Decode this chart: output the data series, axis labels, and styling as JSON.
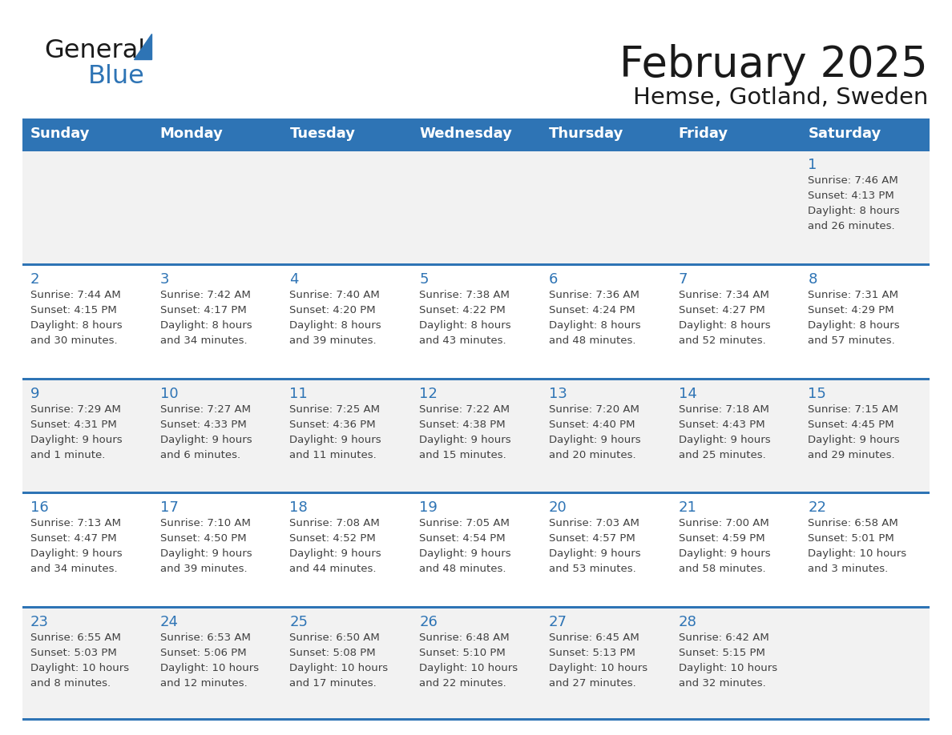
{
  "title": "February 2025",
  "subtitle": "Hemse, Gotland, Sweden",
  "days_of_week": [
    "Sunday",
    "Monday",
    "Tuesday",
    "Wednesday",
    "Thursday",
    "Friday",
    "Saturday"
  ],
  "header_bg": "#2E74B5",
  "header_text": "#FFFFFF",
  "row_bg_odd": "#F2F2F2",
  "row_bg_even": "#FFFFFF",
  "separator_color": "#2E74B5",
  "text_color": "#404040",
  "day_number_color": "#2E74B5",
  "logo_general_color": "#1A1A1A",
  "logo_blue_color": "#2E74B5",
  "logo_triangle_color": "#2E74B5",
  "title_color": "#1A1A1A",
  "calendar_data": [
    [
      {
        "day": null,
        "info": null
      },
      {
        "day": null,
        "info": null
      },
      {
        "day": null,
        "info": null
      },
      {
        "day": null,
        "info": null
      },
      {
        "day": null,
        "info": null
      },
      {
        "day": null,
        "info": null
      },
      {
        "day": 1,
        "info": "Sunrise: 7:46 AM\nSunset: 4:13 PM\nDaylight: 8 hours\nand 26 minutes."
      }
    ],
    [
      {
        "day": 2,
        "info": "Sunrise: 7:44 AM\nSunset: 4:15 PM\nDaylight: 8 hours\nand 30 minutes."
      },
      {
        "day": 3,
        "info": "Sunrise: 7:42 AM\nSunset: 4:17 PM\nDaylight: 8 hours\nand 34 minutes."
      },
      {
        "day": 4,
        "info": "Sunrise: 7:40 AM\nSunset: 4:20 PM\nDaylight: 8 hours\nand 39 minutes."
      },
      {
        "day": 5,
        "info": "Sunrise: 7:38 AM\nSunset: 4:22 PM\nDaylight: 8 hours\nand 43 minutes."
      },
      {
        "day": 6,
        "info": "Sunrise: 7:36 AM\nSunset: 4:24 PM\nDaylight: 8 hours\nand 48 minutes."
      },
      {
        "day": 7,
        "info": "Sunrise: 7:34 AM\nSunset: 4:27 PM\nDaylight: 8 hours\nand 52 minutes."
      },
      {
        "day": 8,
        "info": "Sunrise: 7:31 AM\nSunset: 4:29 PM\nDaylight: 8 hours\nand 57 minutes."
      }
    ],
    [
      {
        "day": 9,
        "info": "Sunrise: 7:29 AM\nSunset: 4:31 PM\nDaylight: 9 hours\nand 1 minute."
      },
      {
        "day": 10,
        "info": "Sunrise: 7:27 AM\nSunset: 4:33 PM\nDaylight: 9 hours\nand 6 minutes."
      },
      {
        "day": 11,
        "info": "Sunrise: 7:25 AM\nSunset: 4:36 PM\nDaylight: 9 hours\nand 11 minutes."
      },
      {
        "day": 12,
        "info": "Sunrise: 7:22 AM\nSunset: 4:38 PM\nDaylight: 9 hours\nand 15 minutes."
      },
      {
        "day": 13,
        "info": "Sunrise: 7:20 AM\nSunset: 4:40 PM\nDaylight: 9 hours\nand 20 minutes."
      },
      {
        "day": 14,
        "info": "Sunrise: 7:18 AM\nSunset: 4:43 PM\nDaylight: 9 hours\nand 25 minutes."
      },
      {
        "day": 15,
        "info": "Sunrise: 7:15 AM\nSunset: 4:45 PM\nDaylight: 9 hours\nand 29 minutes."
      }
    ],
    [
      {
        "day": 16,
        "info": "Sunrise: 7:13 AM\nSunset: 4:47 PM\nDaylight: 9 hours\nand 34 minutes."
      },
      {
        "day": 17,
        "info": "Sunrise: 7:10 AM\nSunset: 4:50 PM\nDaylight: 9 hours\nand 39 minutes."
      },
      {
        "day": 18,
        "info": "Sunrise: 7:08 AM\nSunset: 4:52 PM\nDaylight: 9 hours\nand 44 minutes."
      },
      {
        "day": 19,
        "info": "Sunrise: 7:05 AM\nSunset: 4:54 PM\nDaylight: 9 hours\nand 48 minutes."
      },
      {
        "day": 20,
        "info": "Sunrise: 7:03 AM\nSunset: 4:57 PM\nDaylight: 9 hours\nand 53 minutes."
      },
      {
        "day": 21,
        "info": "Sunrise: 7:00 AM\nSunset: 4:59 PM\nDaylight: 9 hours\nand 58 minutes."
      },
      {
        "day": 22,
        "info": "Sunrise: 6:58 AM\nSunset: 5:01 PM\nDaylight: 10 hours\nand 3 minutes."
      }
    ],
    [
      {
        "day": 23,
        "info": "Sunrise: 6:55 AM\nSunset: 5:03 PM\nDaylight: 10 hours\nand 8 minutes."
      },
      {
        "day": 24,
        "info": "Sunrise: 6:53 AM\nSunset: 5:06 PM\nDaylight: 10 hours\nand 12 minutes."
      },
      {
        "day": 25,
        "info": "Sunrise: 6:50 AM\nSunset: 5:08 PM\nDaylight: 10 hours\nand 17 minutes."
      },
      {
        "day": 26,
        "info": "Sunrise: 6:48 AM\nSunset: 5:10 PM\nDaylight: 10 hours\nand 22 minutes."
      },
      {
        "day": 27,
        "info": "Sunrise: 6:45 AM\nSunset: 5:13 PM\nDaylight: 10 hours\nand 27 minutes."
      },
      {
        "day": 28,
        "info": "Sunrise: 6:42 AM\nSunset: 5:15 PM\nDaylight: 10 hours\nand 32 minutes."
      },
      {
        "day": null,
        "info": null
      }
    ]
  ]
}
